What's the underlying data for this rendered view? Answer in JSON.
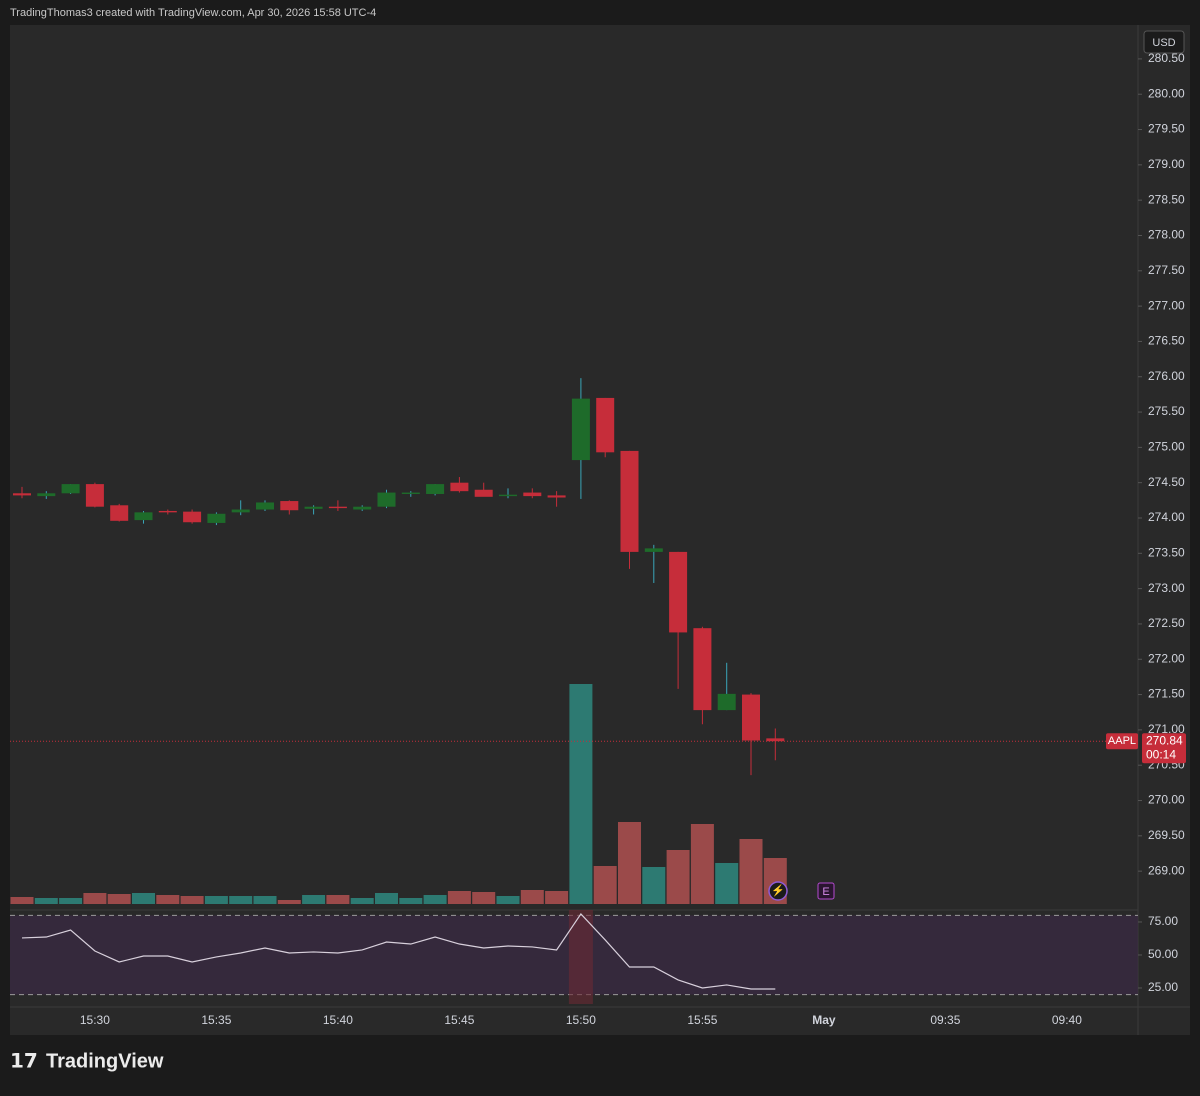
{
  "header": "TradingThomas3 created with TradingView.com, Apr 30, 2026 15:58 UTC-4",
  "footer_brand": "TradingView",
  "event_marker": "E",
  "chart_data": {
    "type": "candlestick",
    "symbol": "AAPL",
    "currency": "USD",
    "x": [
      "15:27",
      "15:28",
      "15:29",
      "15:30",
      "15:31",
      "15:32",
      "15:33",
      "15:34",
      "15:35",
      "15:36",
      "15:37",
      "15:38",
      "15:39",
      "15:40",
      "15:41",
      "15:42",
      "15:43",
      "15:44",
      "15:45",
      "15:46",
      "15:47",
      "15:48",
      "15:49",
      "15:50",
      "15:51",
      "15:52",
      "15:53",
      "15:54",
      "15:55",
      "15:56",
      "15:57",
      "15:58"
    ],
    "open": [
      274.35,
      274.31,
      274.35,
      274.48,
      274.18,
      273.97,
      274.1,
      274.09,
      273.93,
      274.08,
      274.12,
      274.24,
      274.13,
      274.16,
      274.12,
      274.16,
      274.34,
      274.34,
      274.5,
      274.4,
      274.31,
      274.36,
      274.32,
      274.82,
      275.7,
      274.95,
      273.52,
      273.52,
      272.44,
      271.28,
      271.5,
      270.88
    ],
    "high": [
      274.44,
      274.38,
      274.48,
      274.5,
      274.2,
      274.1,
      274.12,
      274.12,
      274.08,
      274.25,
      274.25,
      274.25,
      274.18,
      274.25,
      274.18,
      274.4,
      274.38,
      274.48,
      274.58,
      274.5,
      274.42,
      274.42,
      274.38,
      275.98,
      275.7,
      274.95,
      273.62,
      273.52,
      272.46,
      271.95,
      271.52,
      271.02
    ],
    "low": [
      274.28,
      274.27,
      274.34,
      274.15,
      273.95,
      273.92,
      274.05,
      273.92,
      273.9,
      274.04,
      274.1,
      274.05,
      274.05,
      274.1,
      274.1,
      274.14,
      274.3,
      274.32,
      274.36,
      274.32,
      274.28,
      274.28,
      274.16,
      274.27,
      274.86,
      273.28,
      273.08,
      271.58,
      271.08,
      271.28,
      270.36,
      270.57
    ],
    "close": [
      274.32,
      274.35,
      274.48,
      274.16,
      273.96,
      274.08,
      274.08,
      273.94,
      274.06,
      274.12,
      274.22,
      274.11,
      274.16,
      274.14,
      274.16,
      274.36,
      274.36,
      274.48,
      274.38,
      274.3,
      274.33,
      274.31,
      274.29,
      275.69,
      274.93,
      273.52,
      273.57,
      272.38,
      271.28,
      271.51,
      270.85,
      270.84
    ],
    "volume": [
      35000,
      30000,
      30000,
      55000,
      50000,
      55000,
      45000,
      40000,
      40000,
      40000,
      40000,
      20000,
      45000,
      45000,
      30000,
      55000,
      30000,
      45000,
      65000,
      60000,
      40000,
      70000,
      65000,
      1100000,
      190000,
      410000,
      185000,
      270000,
      400000,
      205000,
      325000,
      230000
    ],
    "ylim": [
      268.45,
      280.98
    ],
    "yticks": [
      {
        "value": 269,
        "label": "269.00"
      },
      {
        "value": 269.5,
        "label": "269.50"
      },
      {
        "value": 270,
        "label": "270.00"
      },
      {
        "value": 270.5,
        "label": "270.50"
      },
      {
        "value": 271,
        "label": "271.00"
      },
      {
        "value": 271.5,
        "label": "271.50"
      },
      {
        "value": 272,
        "label": "272.00"
      },
      {
        "value": 272.5,
        "label": "272.50"
      },
      {
        "value": 273,
        "label": "273.00"
      },
      {
        "value": 273.5,
        "label": "273.50"
      },
      {
        "value": 274,
        "label": "274.00"
      },
      {
        "value": 274.5,
        "label": "274.50"
      },
      {
        "value": 275,
        "label": "275.00"
      },
      {
        "value": 275.5,
        "label": "275.50"
      },
      {
        "value": 276,
        "label": "276.00"
      },
      {
        "value": 276.5,
        "label": "276.50"
      },
      {
        "value": 277,
        "label": "277.00"
      },
      {
        "value": 277.5,
        "label": "277.50"
      },
      {
        "value": 278,
        "label": "278.00"
      },
      {
        "value": 278.5,
        "label": "278.50"
      },
      {
        "value": 279,
        "label": "279.00"
      },
      {
        "value": 279.5,
        "label": "279.50"
      },
      {
        "value": 280,
        "label": "280.00"
      },
      {
        "value": 280.5,
        "label": "280.50"
      }
    ],
    "xticks": [
      "15:30",
      "15:35",
      "15:40",
      "15:45",
      "15:50",
      "15:55",
      "May",
      "09:35",
      "09:40"
    ],
    "last_price": 270.84,
    "countdown": "00:14",
    "up_color": "#1e6b2a",
    "down_color": "#c62d3a",
    "up_wick_color": "#3aa6b9",
    "up_volume_color": "#2d7a72",
    "down_volume_color": "#9b4a4a",
    "grid": false,
    "rsi": {
      "values": [
        62.9,
        63.6,
        68.9,
        53.0,
        44.7,
        49.2,
        49.2,
        44.7,
        48.5,
        51.5,
        55.3,
        51.5,
        52.3,
        51.5,
        53.8,
        59.8,
        58.3,
        63.6,
        58.3,
        55.3,
        56.8,
        56.1,
        53.8,
        81.1,
        61.4,
        40.9,
        40.9,
        31.1,
        25.0,
        27.3,
        24.2,
        24.2
      ],
      "ylim": [
        12.1,
        81.8
      ],
      "yticks": [
        {
          "value": 25,
          "label": "25.00"
        },
        {
          "value": 50,
          "label": "50.00"
        },
        {
          "value": 75,
          "label": "75.00"
        }
      ],
      "bands": [
        20,
        80
      ],
      "color": "#d8d0dc"
    }
  }
}
